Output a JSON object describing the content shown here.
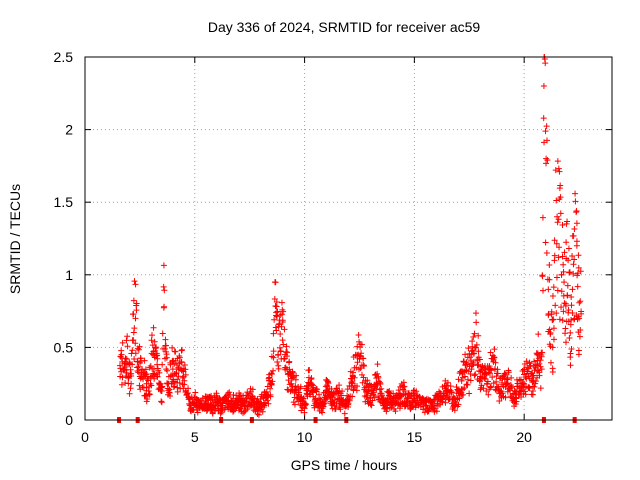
{
  "chart_data": {
    "type": "scatter",
    "title": "Day 336 of 2024, SRMTID for receiver ac59",
    "xlabel": "GPS time / hours",
    "ylabel": "SRMTID / TECUs",
    "xlim": [
      0,
      24
    ],
    "ylim": [
      0,
      2.5
    ],
    "xticks": [
      0,
      5,
      10,
      15,
      20
    ],
    "xtick_labels": [
      "0",
      "5",
      "10",
      "15",
      "20"
    ],
    "yticks": [
      0,
      0.5,
      1,
      1.5,
      2,
      2.5
    ],
    "ytick_labels": [
      "0",
      "0.5",
      "1",
      "1.5",
      "2",
      "2.5"
    ],
    "grid": true,
    "marker": "+",
    "series": [
      {
        "name": "SRMTID",
        "color": "#ff0000",
        "approx_points": {
          "x": [
            1.6,
            1.7,
            1.8,
            1.9,
            2.0,
            2.1,
            2.2,
            2.3,
            2.4,
            2.5,
            2.6,
            2.7,
            2.8,
            2.9,
            3.0,
            3.1,
            3.2,
            3.3,
            3.4,
            3.5,
            3.6,
            3.7,
            3.8,
            3.9,
            4.0,
            4.2,
            4.4,
            4.6,
            4.8,
            5.0,
            5.2,
            5.5,
            5.8,
            6.0,
            6.2,
            6.5,
            6.8,
            7.0,
            7.3,
            7.6,
            7.9,
            8.2,
            8.5,
            8.7,
            8.8,
            9.0,
            9.2,
            9.4,
            9.6,
            9.8,
            10.0,
            10.2,
            10.5,
            10.8,
            11.0,
            11.3,
            11.6,
            11.9,
            12.2,
            12.5,
            12.8,
            13.0,
            13.3,
            13.6,
            13.9,
            14.2,
            14.5,
            14.8,
            15.0,
            15.3,
            15.6,
            15.9,
            16.2,
            16.5,
            16.8,
            17.0,
            17.3,
            17.6,
            17.8,
            18.0,
            18.3,
            18.6,
            18.9,
            19.2,
            19.5,
            19.8,
            20.0,
            20.2,
            20.4,
            20.6,
            20.8,
            20.9,
            21.0,
            21.1,
            21.2,
            21.3,
            21.5,
            21.7,
            21.9,
            22.0,
            22.1,
            22.2,
            22.4,
            22.5
          ],
          "y": [
            0.3,
            0.4,
            0.35,
            0.42,
            0.3,
            0.25,
            0.55,
            0.7,
            0.4,
            0.3,
            0.35,
            0.3,
            0.25,
            0.2,
            0.3,
            0.45,
            0.5,
            0.3,
            0.22,
            0.2,
            0.78,
            0.35,
            0.25,
            0.3,
            0.35,
            0.28,
            0.4,
            0.2,
            0.1,
            0.12,
            0.1,
            0.11,
            0.09,
            0.12,
            0.1,
            0.13,
            0.1,
            0.12,
            0.1,
            0.15,
            0.08,
            0.12,
            0.25,
            0.72,
            0.45,
            0.55,
            0.35,
            0.25,
            0.2,
            0.15,
            0.08,
            0.25,
            0.15,
            0.1,
            0.2,
            0.12,
            0.15,
            0.1,
            0.3,
            0.42,
            0.2,
            0.15,
            0.25,
            0.1,
            0.15,
            0.12,
            0.18,
            0.1,
            0.15,
            0.12,
            0.08,
            0.1,
            0.15,
            0.2,
            0.1,
            0.2,
            0.3,
            0.35,
            0.5,
            0.3,
            0.25,
            0.4,
            0.2,
            0.25,
            0.15,
            0.2,
            0.25,
            0.3,
            0.2,
            0.45,
            0.35,
            2.3,
            1.8,
            0.9,
            0.6,
            0.5,
            1.4,
            1.0,
            0.8,
            1.1,
            0.6,
            0.9,
            1.2,
            0.7
          ]
        }
      }
    ],
    "baseline_markers_x": [
      1.55,
      2.4,
      6.2,
      7.6,
      10.5,
      11.9,
      20.9,
      22.3
    ]
  }
}
